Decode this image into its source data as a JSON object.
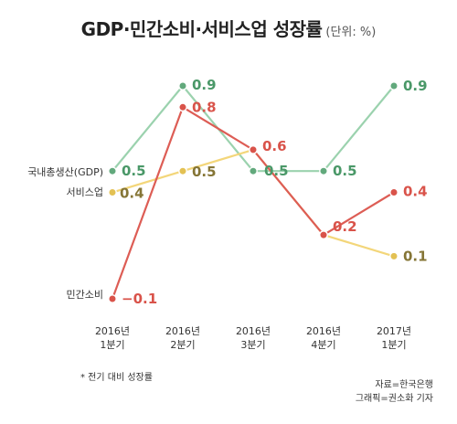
{
  "chart_data": {
    "type": "line",
    "title": "GDP·민간소비·서비스업 성장률",
    "subtitle": "(단위: %)",
    "categories": [
      [
        "2016년",
        "1분기"
      ],
      [
        "2016년",
        "2분기"
      ],
      [
        "2016년",
        "3분기"
      ],
      [
        "2016년",
        "4분기"
      ],
      [
        "2017년",
        "1분기"
      ]
    ],
    "series": [
      {
        "name": "국내총생산(GDP)",
        "values": [
          0.5,
          0.9,
          0.5,
          0.5,
          0.9
        ],
        "labels": [
          "0.5",
          "0.9",
          "0.5",
          "0.5",
          "0.9"
        ],
        "color": "#9bd2ae",
        "label_color": "#4a9868",
        "dot_color": "#62a97c"
      },
      {
        "name": "서비스업",
        "values": [
          0.4,
          0.5,
          0.6,
          0.2,
          0.1
        ],
        "labels": [
          "0.4",
          "0.5",
          "",
          "",
          "0.1"
        ],
        "color": "#f3d67a",
        "label_color": "#857536",
        "dot_color": "#e3c153"
      },
      {
        "name": "민간소비",
        "values": [
          -0.1,
          0.8,
          0.6,
          0.2,
          0.4
        ],
        "labels": [
          "−0.1",
          "0.8",
          "0.6",
          "0.2",
          "0.4"
        ],
        "color": "#dd5d55",
        "label_color": "#d9534a",
        "dot_color": "#d9534a"
      }
    ],
    "ylim": [
      -0.1,
      0.9
    ],
    "grid": false,
    "legend": "left-of-first-point"
  },
  "footnote": "* 전기 대비 성장률",
  "credits": [
    "자료=한국은행",
    "그래픽=권소화 기자"
  ]
}
